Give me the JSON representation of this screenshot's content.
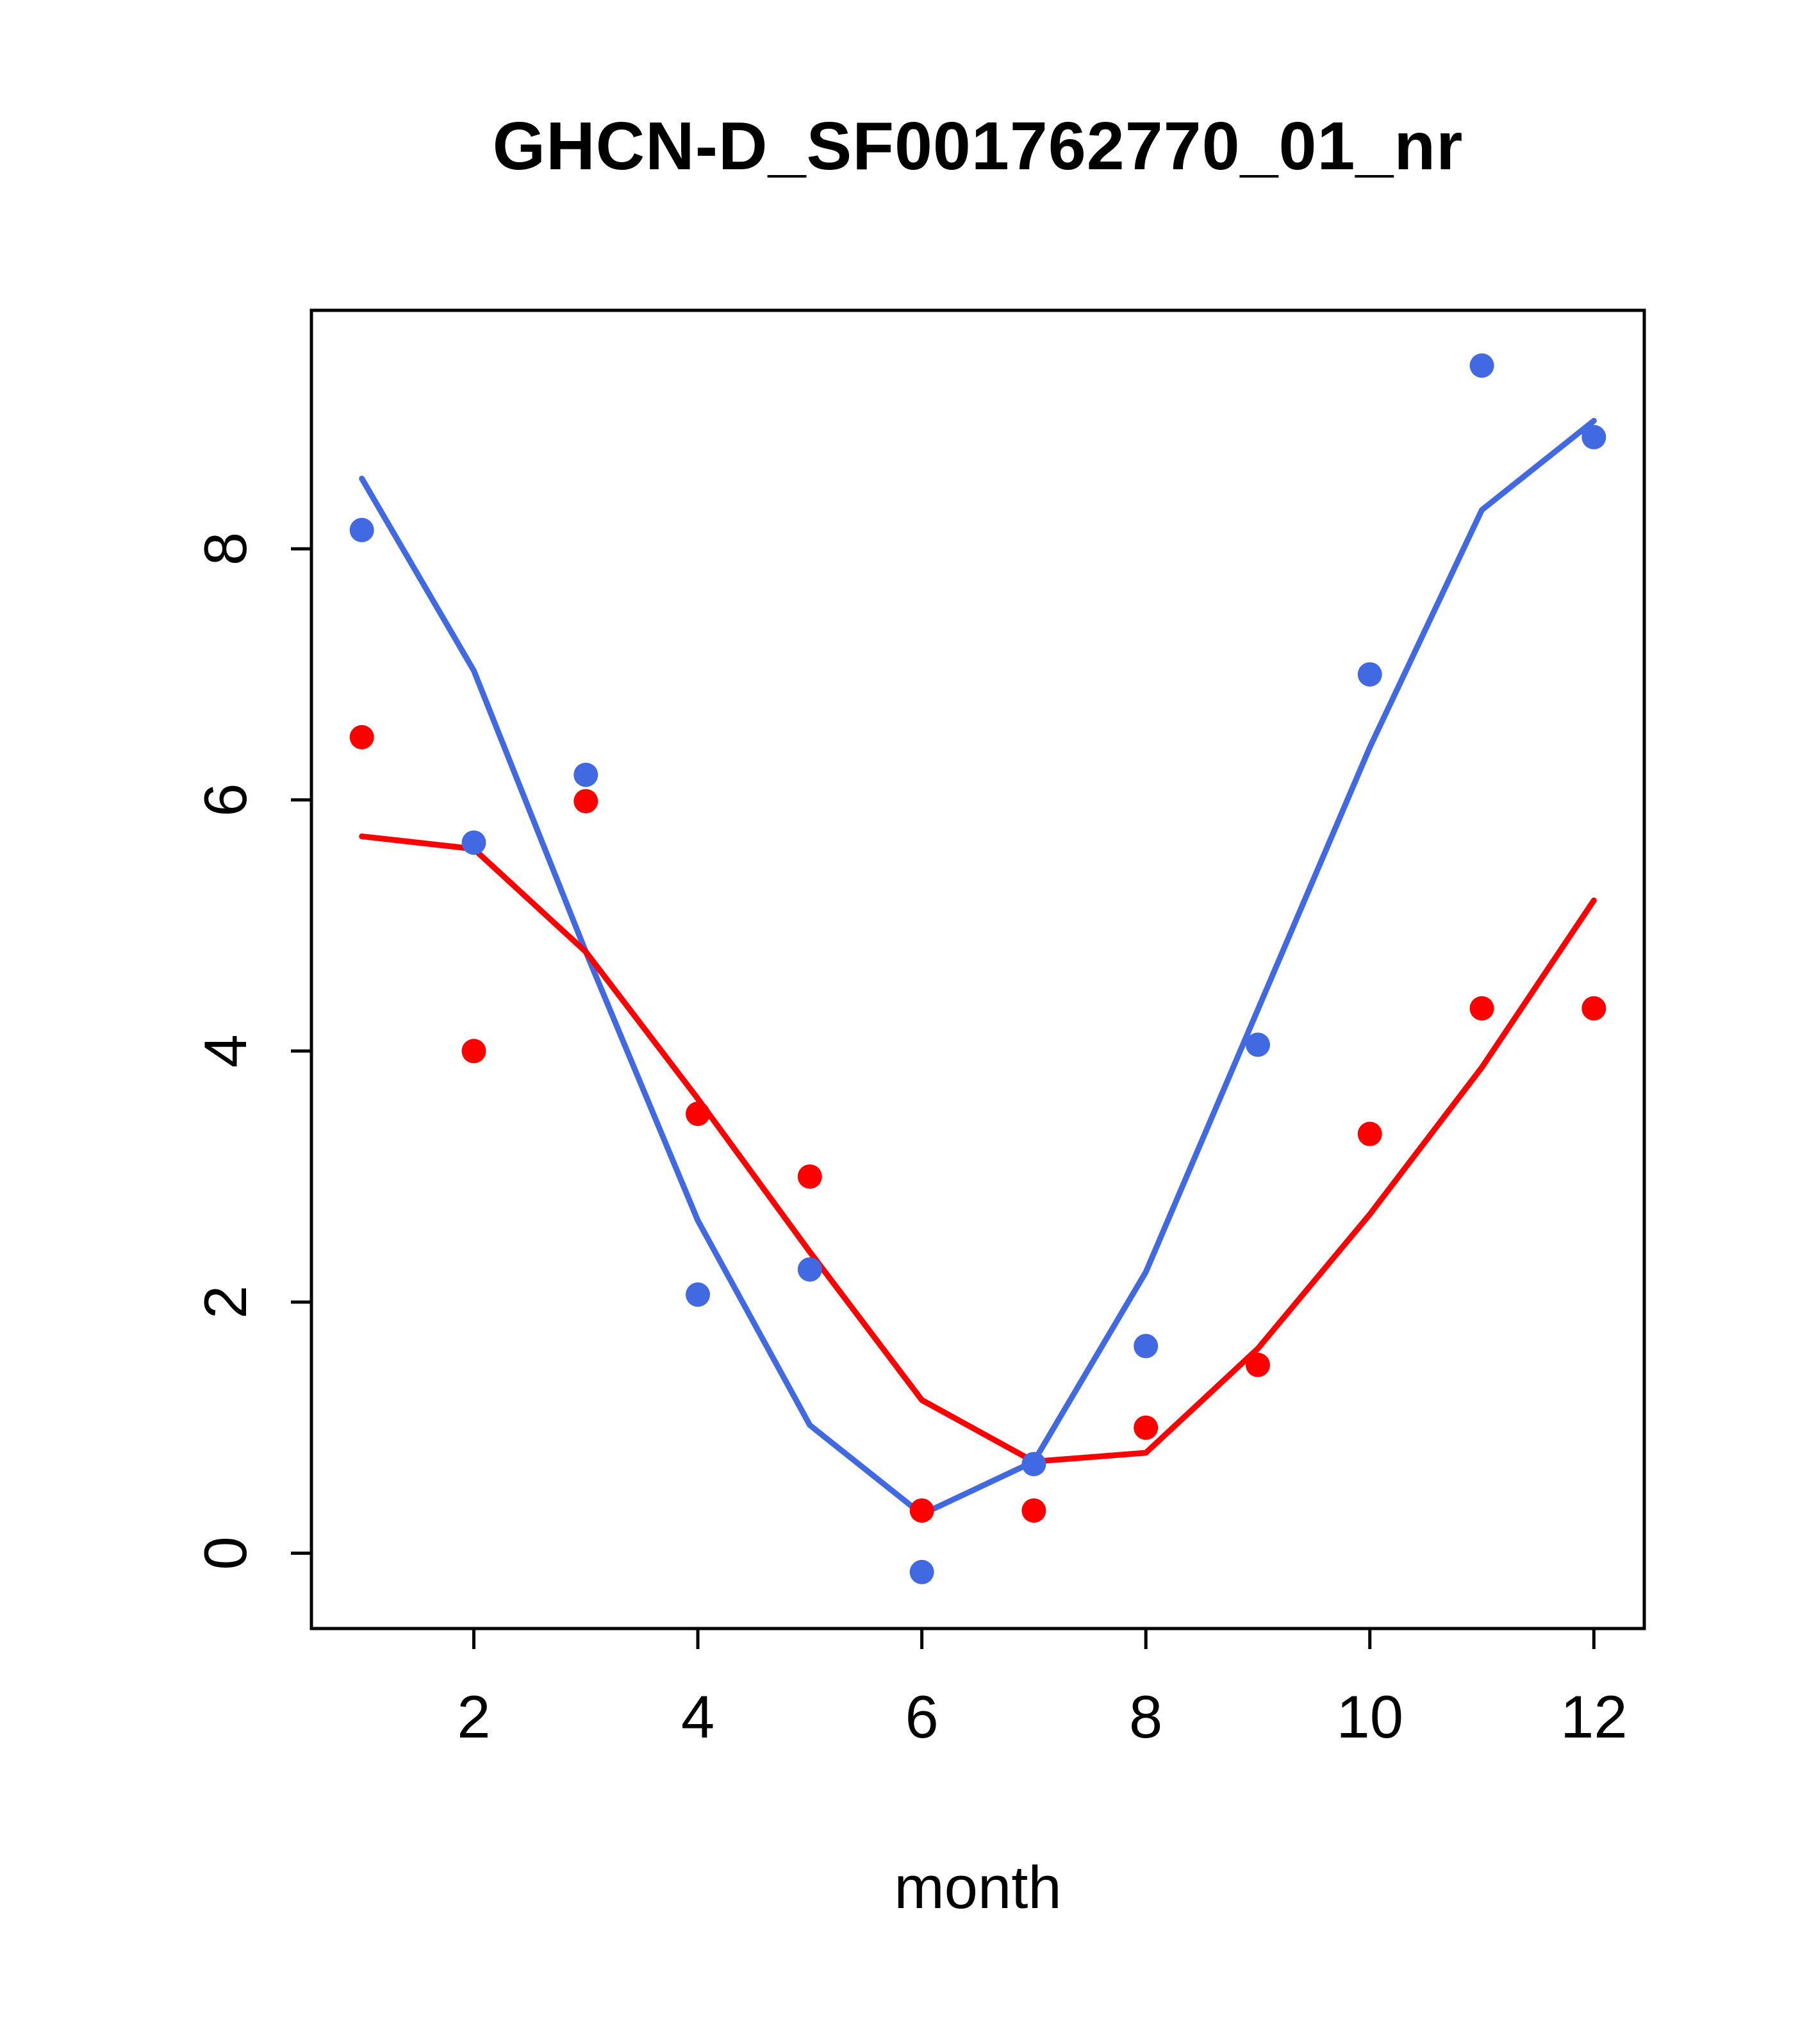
{
  "chart_data": {
    "type": "scatter",
    "title": "GHCN-D_SF001762770_01_nr",
    "xlabel": "month",
    "ylabel": "",
    "grid": false,
    "legend": "none",
    "xlim": [
      0.55,
      12.45
    ],
    "ylim": [
      -0.6,
      9.9
    ],
    "xticks": [
      2,
      4,
      6,
      8,
      10,
      12
    ],
    "yticks": [
      0,
      2,
      4,
      6,
      8
    ],
    "x": [
      1,
      2,
      3,
      4,
      5,
      6,
      7,
      8,
      9,
      10,
      11,
      12
    ],
    "colors": {
      "blue": "#4169E1",
      "red": "#FF0000",
      "axis": "#000000"
    },
    "series": [
      {
        "name": "blue-trend-line",
        "style": "line",
        "color": "#4169E1",
        "values": [
          8.56,
          7.03,
          4.79,
          2.65,
          1.02,
          0.31,
          0.73,
          2.24,
          4.33,
          6.42,
          8.31,
          9.02
        ]
      },
      {
        "name": "red-trend-line",
        "style": "line",
        "color": "#FF0000",
        "values": [
          5.71,
          5.61,
          4.79,
          3.62,
          2.4,
          1.22,
          0.73,
          0.8,
          1.63,
          2.7,
          3.87,
          5.2
        ]
      },
      {
        "name": "blue-points",
        "style": "points",
        "color": "#4169E1",
        "values": [
          8.15,
          5.66,
          6.2,
          2.06,
          2.26,
          -0.15,
          0.71,
          1.65,
          4.05,
          7.0,
          9.46,
          8.89
        ]
      },
      {
        "name": "red-points",
        "style": "points",
        "color": "#FF0000",
        "values": [
          6.5,
          4.0,
          5.99,
          3.5,
          3.0,
          0.34,
          0.34,
          1.0,
          1.5,
          3.34,
          4.34,
          4.34
        ]
      }
    ]
  }
}
